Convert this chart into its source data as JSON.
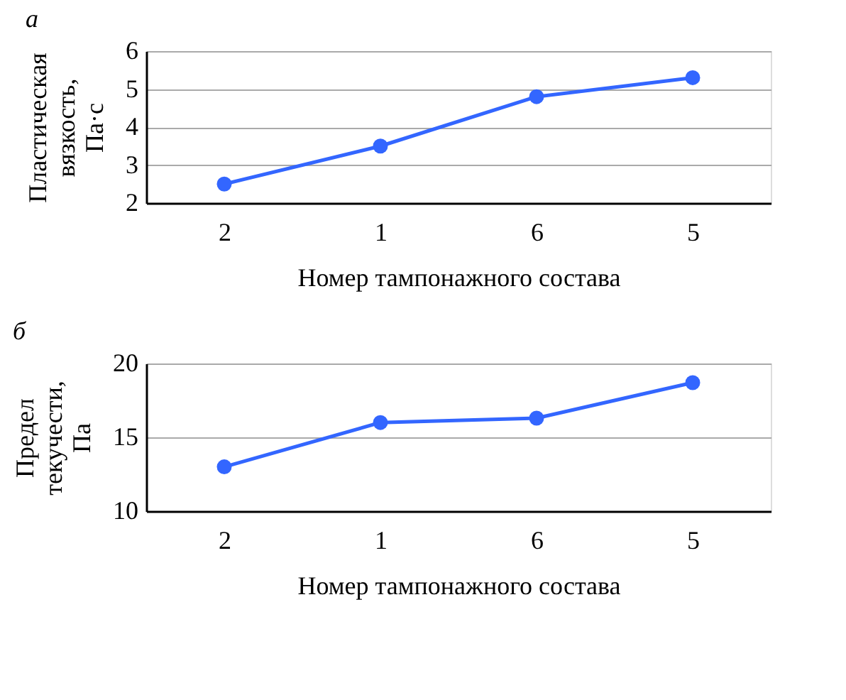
{
  "chart_data": [
    {
      "type": "line",
      "title": "а",
      "categories": [
        "2",
        "1",
        "6",
        "5"
      ],
      "xlabel": "Номер тампонажного состава",
      "ylabel": "Пластическая вязкость, Па·с",
      "ylim": [
        2,
        6
      ],
      "yticks": [
        2,
        3,
        4,
        5,
        6
      ],
      "grid": "y",
      "marker": "circle",
      "line_style": "solid",
      "series": [
        {
          "color": "#3366ff",
          "values": [
            2.5,
            3.5,
            4.8,
            5.3
          ]
        }
      ]
    },
    {
      "type": "line",
      "title": "б",
      "categories": [
        "2",
        "1",
        "6",
        "5"
      ],
      "xlabel": "Номер тампонажного состава",
      "ylabel": "Предел текучести, Па",
      "ylim": [
        10,
        20
      ],
      "yticks": [
        10,
        15,
        20
      ],
      "grid": "y",
      "marker": "circle",
      "line_style": "solid",
      "series": [
        {
          "color": "#3366ff",
          "values": [
            13.0,
            16.0,
            16.3,
            18.7
          ]
        }
      ]
    }
  ]
}
